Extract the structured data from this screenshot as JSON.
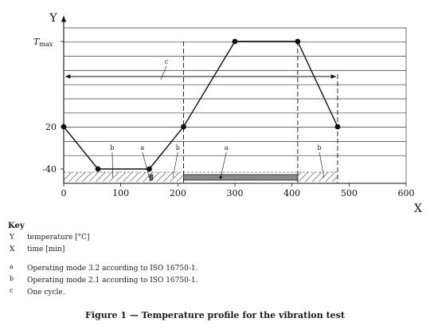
{
  "chart_data": {
    "type": "line",
    "x": [
      0,
      60,
      150,
      210,
      300,
      410,
      480
    ],
    "y": [
      20,
      -40,
      -40,
      20,
      110,
      110,
      20
    ],
    "xlim": [
      0,
      600
    ],
    "xticks": [
      "0",
      "100",
      "200",
      "300",
      "400",
      "500",
      "600"
    ],
    "xticks_values": [
      0,
      100,
      200,
      300,
      400,
      500,
      600
    ],
    "ylim": [
      -40,
      110
    ],
    "ytick_labels": [
      {
        "label": "T",
        "sub": "max",
        "value": 110
      },
      {
        "label": "20",
        "value": 20
      },
      {
        "label": "-40",
        "value": -40
      }
    ],
    "xlabel": "X",
    "ylabel": "Y",
    "grid": "horizontal",
    "cycle": {
      "label": "c",
      "start": 0,
      "end": 480
    },
    "mode_bands": [
      {
        "label": "b",
        "start": 0,
        "end": 150,
        "style": "hatched",
        "label_x": 85
      },
      {
        "label": "a",
        "start": 145,
        "end": 155,
        "style": "solid-small",
        "label_x": 138
      },
      {
        "label": "b",
        "start": 150,
        "end": 210,
        "style": "hatched",
        "label_x": 200
      },
      {
        "label": "a",
        "start": 210,
        "end": 410,
        "style": "solid",
        "label_x": 285
      },
      {
        "label": "b",
        "start": 410,
        "end": 480,
        "style": "hatched",
        "label_x": 448
      }
    ],
    "dashed_markers": [
      210,
      410,
      480
    ]
  },
  "key": {
    "title": "Key",
    "axes": [
      {
        "sym": "Y",
        "text": "temperature [°C]"
      },
      {
        "sym": "X",
        "text": "time [min]"
      }
    ],
    "notes": [
      {
        "sym": "a",
        "text": "Operating mode 3.2 according to ISO 16750-1."
      },
      {
        "sym": "b",
        "text": "Operating mode 2.1 according to ISO 16750-1."
      },
      {
        "sym": "c",
        "text": "One cycle."
      }
    ]
  },
  "caption": "Figure 1 — Temperature profile for the vibration test"
}
